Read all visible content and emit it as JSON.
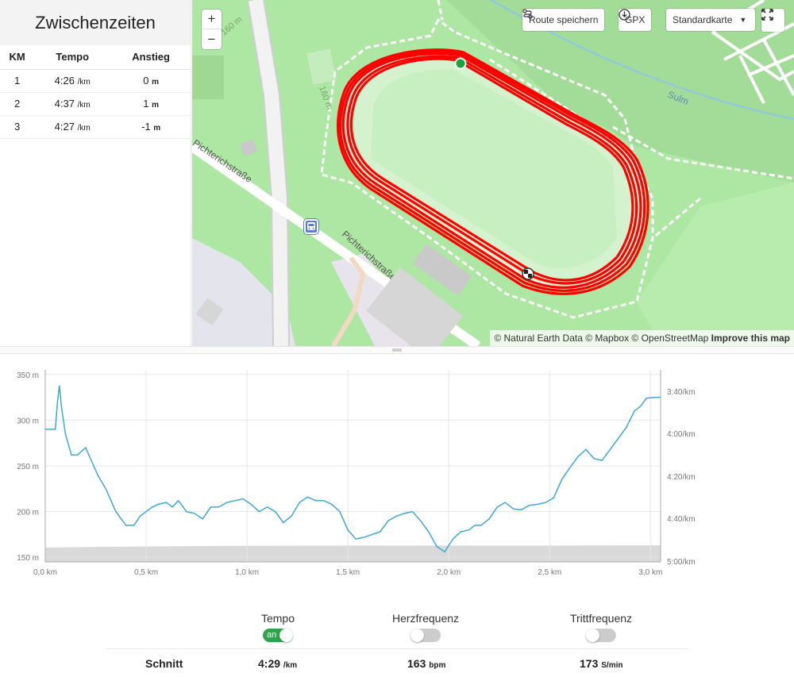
{
  "splits": {
    "title": "Zwischenzeiten",
    "headers": {
      "km": "KM",
      "tempo": "Tempo",
      "ascent": "Anstieg"
    },
    "rows": [
      {
        "km": "1",
        "tempo": "4:26",
        "tempo_unit": "/km",
        "ascent": "0",
        "ascent_unit": "m"
      },
      {
        "km": "2",
        "tempo": "4:37",
        "tempo_unit": "/km",
        "ascent": "1",
        "ascent_unit": "m"
      },
      {
        "km": "3",
        "tempo": "4:27",
        "tempo_unit": "/km",
        "ascent": "-1",
        "ascent_unit": "m"
      }
    ]
  },
  "map": {
    "zoom_in": "+",
    "zoom_out": "−",
    "save_route": "Route speichern",
    "gpx": "GPX",
    "map_style": "Standardkarte",
    "attribution": "© Natural Earth Data © Mapbox © OpenStreetMap",
    "improve": "Improve this map",
    "labels": {
      "street1": "Pichterichstraße",
      "street2": "Pichterichstraße",
      "river": "Sulm",
      "contour1": "160 m",
      "contour2": "160 m"
    },
    "colors": {
      "route": "#ff0000",
      "start": "#1fa33b",
      "grass": "#aee6a4",
      "field": "#c8efc1"
    }
  },
  "chart_data": {
    "type": "line",
    "x_axis": {
      "unit": "km",
      "range": [
        0,
        3.05
      ],
      "ticks": [
        "0,0 km",
        "0,5 km",
        "1,0 km",
        "1,5 km",
        "2,0 km",
        "2,5 km",
        "3,0 km"
      ]
    },
    "y_left": {
      "unit": "m",
      "range": [
        145,
        355
      ],
      "ticks": [
        "350 m",
        "300 m",
        "250 m",
        "200 m",
        "150 m"
      ]
    },
    "y_right": {
      "ticks": [
        "3:40/km",
        "4:00/km",
        "4:20/km",
        "4:40/km",
        "5:00/km"
      ]
    },
    "grid": true,
    "series": [
      {
        "color": "#3ea8d8",
        "x": [
          0,
          0.05,
          0.06,
          0.07,
          0.08,
          0.1,
          0.13,
          0.16,
          0.2,
          0.23,
          0.26,
          0.3,
          0.35,
          0.4,
          0.44,
          0.47,
          0.5,
          0.53,
          0.56,
          0.6,
          0.63,
          0.66,
          0.7,
          0.74,
          0.78,
          0.82,
          0.86,
          0.9,
          0.94,
          0.98,
          1.02,
          1.06,
          1.1,
          1.14,
          1.18,
          1.22,
          1.26,
          1.3,
          1.34,
          1.38,
          1.42,
          1.46,
          1.5,
          1.54,
          1.58,
          1.62,
          1.66,
          1.7,
          1.74,
          1.78,
          1.82,
          1.86,
          1.9,
          1.94,
          1.98,
          2.02,
          2.06,
          2.1,
          2.13,
          2.16,
          2.2,
          2.24,
          2.28,
          2.32,
          2.36,
          2.4,
          2.44,
          2.48,
          2.52,
          2.56,
          2.6,
          2.64,
          2.68,
          2.72,
          2.76,
          2.8,
          2.84,
          2.88,
          2.92,
          2.95,
          2.98,
          3.02,
          3.05
        ],
        "y": [
          290,
          290,
          318,
          338,
          315,
          285,
          262,
          262,
          270,
          255,
          240,
          225,
          200,
          185,
          185,
          195,
          200,
          205,
          208,
          210,
          205,
          212,
          200,
          198,
          192,
          205,
          205,
          210,
          212,
          214,
          208,
          200,
          205,
          200,
          188,
          195,
          210,
          216,
          212,
          212,
          208,
          200,
          180,
          170,
          172,
          175,
          178,
          190,
          195,
          198,
          200,
          190,
          178,
          162,
          156,
          170,
          178,
          180,
          185,
          185,
          192,
          205,
          210,
          203,
          202,
          207,
          208,
          210,
          215,
          235,
          248,
          260,
          268,
          258,
          256,
          268,
          280,
          292,
          310,
          315,
          324,
          325,
          325
        ]
      }
    ]
  },
  "toggles": [
    {
      "label": "Tempo",
      "state": "on",
      "on_text": "an"
    },
    {
      "label": "Herzfrequenz",
      "state": "off"
    },
    {
      "label": "Trittfrequenz",
      "state": "off"
    }
  ],
  "summary": {
    "label": "Schnitt",
    "tempo": "4:29",
    "tempo_unit": "/km",
    "hr": "163",
    "hr_unit": "bpm",
    "cadence": "173",
    "cadence_unit": "S/min"
  }
}
